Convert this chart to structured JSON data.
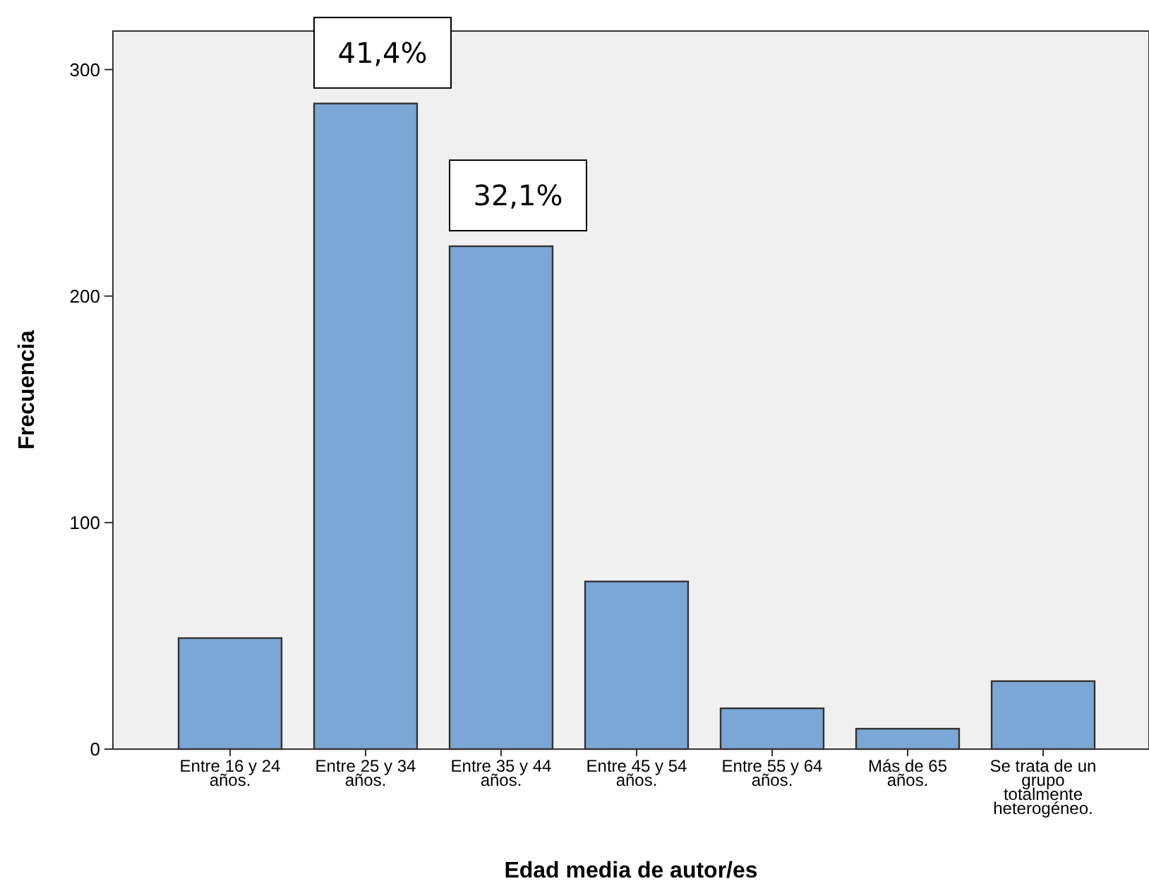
{
  "chart_data": {
    "type": "bar",
    "xlabel": "Edad media de autor/es",
    "ylabel": "Frecuencia",
    "categories": [
      "Entre 16 y 24 años.",
      "Entre 25 y 34 años.",
      "Entre 35 y 44 años.",
      "Entre 45 y 54 años.",
      "Entre 55 y 64 años.",
      "Más de 65 años.",
      "Se trata de un grupo totalmente heterogéneo."
    ],
    "values": [
      49,
      285,
      222,
      74,
      18,
      9,
      30
    ],
    "color": "#7ba7d6",
    "ylim": [
      0,
      317
    ],
    "yticks": [
      0,
      100,
      200,
      300
    ],
    "grid": false,
    "annotations": [
      {
        "text": "41,4%",
        "x": "Entre 25 y 34 años.",
        "y": 285
      },
      {
        "text": "32,1%",
        "x": "Entre 35 y 44 años.",
        "y": 222
      }
    ]
  }
}
